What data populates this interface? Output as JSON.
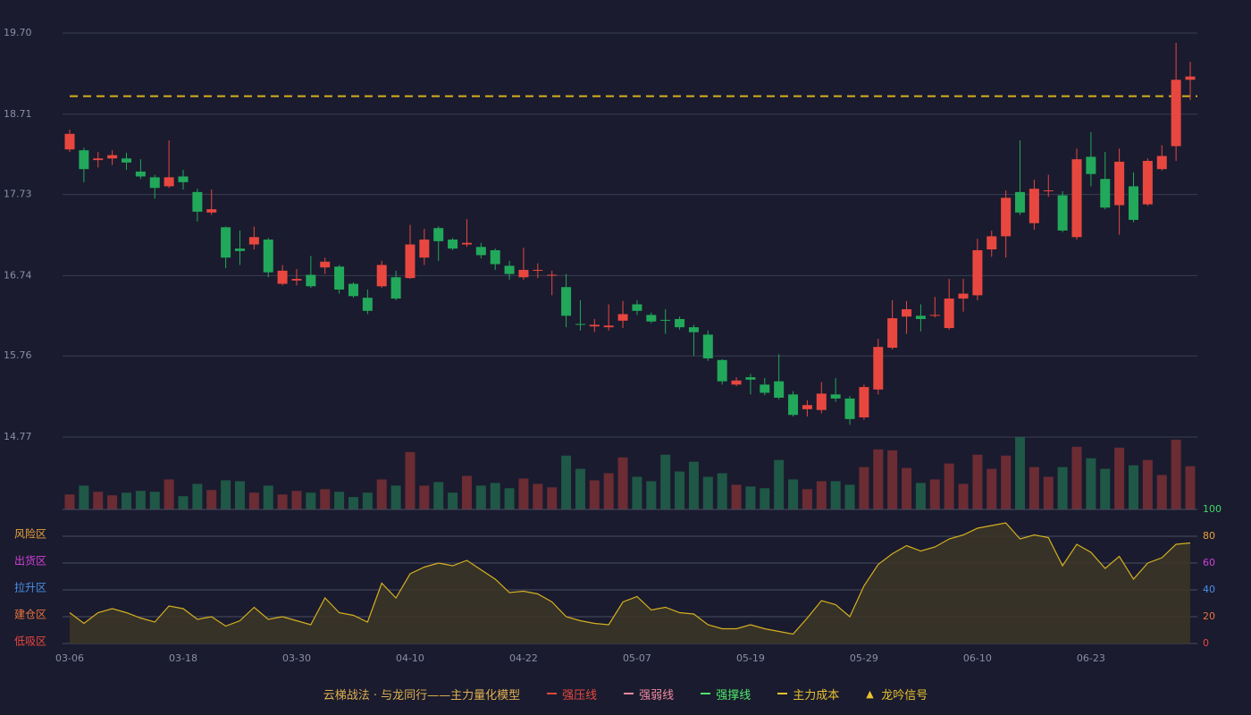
{
  "chart_data": [
    {
      "type": "candlestick",
      "categories": [
        "03-06",
        null,
        null,
        null,
        null,
        null,
        null,
        null,
        "03-18",
        null,
        null,
        null,
        null,
        null,
        null,
        null,
        "03-30",
        null,
        null,
        null,
        null,
        null,
        null,
        null,
        "04-10",
        null,
        null,
        null,
        null,
        null,
        null,
        null,
        "04-22",
        null,
        null,
        null,
        null,
        null,
        null,
        null,
        "05-07",
        null,
        null,
        null,
        null,
        null,
        null,
        null,
        "05-19",
        null,
        null,
        null,
        null,
        null,
        null,
        null,
        "05-29",
        null,
        null,
        null,
        null,
        null,
        null,
        null,
        "06-10",
        null,
        null,
        null,
        null,
        null,
        null,
        null,
        "06-23",
        null,
        null,
        null,
        null,
        null,
        null,
        null
      ],
      "open": [
        18.28,
        18.27,
        18.15,
        18.17,
        18.17,
        18.01,
        17.94,
        17.83,
        17.95,
        17.76,
        17.51,
        17.33,
        17.07,
        17.12,
        17.18,
        16.64,
        16.68,
        16.75,
        16.84,
        16.85,
        16.64,
        16.47,
        16.61,
        16.72,
        16.71,
        16.96,
        17.32,
        17.18,
        17.12,
        17.09,
        17.05,
        16.86,
        16.72,
        16.8,
        16.74,
        16.6,
        16.15,
        16.12,
        16.11,
        16.19,
        16.39,
        16.26,
        16.2,
        16.21,
        16.11,
        16.02,
        15.71,
        15.41,
        15.5,
        15.41,
        15.45,
        15.29,
        15.11,
        15.1,
        15.29,
        15.24,
        15.01,
        15.35,
        15.86,
        16.24,
        16.25,
        16.25,
        16.1,
        16.46,
        16.5,
        17.06,
        17.22,
        17.76,
        17.38,
        17.77,
        17.72,
        17.21,
        18.19,
        17.92,
        17.6,
        17.83,
        17.61,
        18.04,
        18.32,
        19.13
      ],
      "close": [
        18.47,
        18.04,
        18.17,
        18.21,
        18.12,
        17.95,
        17.81,
        17.94,
        17.88,
        17.52,
        17.55,
        16.96,
        17.04,
        17.21,
        16.78,
        16.8,
        16.7,
        16.61,
        16.91,
        16.57,
        16.49,
        16.31,
        16.87,
        16.46,
        17.12,
        17.18,
        17.16,
        17.07,
        17.14,
        16.99,
        16.88,
        16.76,
        16.81,
        16.81,
        16.75,
        16.25,
        16.14,
        16.14,
        16.13,
        16.27,
        16.31,
        16.18,
        16.19,
        16.11,
        16.05,
        15.73,
        15.45,
        15.46,
        15.47,
        15.31,
        15.25,
        15.04,
        15.16,
        15.3,
        15.24,
        14.99,
        15.38,
        15.87,
        16.22,
        16.33,
        16.21,
        16.26,
        16.46,
        16.52,
        17.05,
        17.22,
        17.69,
        17.51,
        17.8,
        17.78,
        17.29,
        18.16,
        17.98,
        17.57,
        18.13,
        17.42,
        18.14,
        18.2,
        19.13,
        19.17
      ],
      "high": [
        18.52,
        18.3,
        18.25,
        18.27,
        18.24,
        18.16,
        17.97,
        18.39,
        18.03,
        17.8,
        17.79,
        17.34,
        17.29,
        17.34,
        17.2,
        16.87,
        16.82,
        16.98,
        16.96,
        16.87,
        16.66,
        16.57,
        16.92,
        16.8,
        17.36,
        17.31,
        17.34,
        17.2,
        17.43,
        17.14,
        17.07,
        16.92,
        17.08,
        16.89,
        16.8,
        16.76,
        16.44,
        16.21,
        16.39,
        16.43,
        16.44,
        16.29,
        16.33,
        16.24,
        16.14,
        16.07,
        15.72,
        15.5,
        15.54,
        15.49,
        15.78,
        15.33,
        15.22,
        15.44,
        15.49,
        15.27,
        15.41,
        15.97,
        16.44,
        16.43,
        16.39,
        16.48,
        16.7,
        16.7,
        17.19,
        17.29,
        17.78,
        18.39,
        17.91,
        17.97,
        17.77,
        18.29,
        18.49,
        18.25,
        18.29,
        18.0,
        18.17,
        18.33,
        19.58,
        19.35
      ],
      "low": [
        18.25,
        17.88,
        18.06,
        18.09,
        18.03,
        17.92,
        17.68,
        17.81,
        17.79,
        17.4,
        17.48,
        16.83,
        16.87,
        17.06,
        16.72,
        16.62,
        16.62,
        16.59,
        16.76,
        16.52,
        16.47,
        16.27,
        16.59,
        16.44,
        16.7,
        16.87,
        16.92,
        17.05,
        17.09,
        16.95,
        16.81,
        16.69,
        16.69,
        16.71,
        16.5,
        16.11,
        16.07,
        16.05,
        16.07,
        16.1,
        16.26,
        16.16,
        16.03,
        16.08,
        15.76,
        15.7,
        15.41,
        15.39,
        15.29,
        15.28,
        15.23,
        15.02,
        15.02,
        15.06,
        15.2,
        14.92,
        14.98,
        15.29,
        15.84,
        16.03,
        16.06,
        16.23,
        16.08,
        16.3,
        16.44,
        16.97,
        16.96,
        17.48,
        17.3,
        17.7,
        17.27,
        17.18,
        17.83,
        17.55,
        17.24,
        17.39,
        17.59,
        18.02,
        18.14,
        18.88
      ],
      "ylim": [
        14.77,
        19.7
      ],
      "yticks": [
        14.77,
        15.76,
        16.74,
        17.73,
        18.71,
        {
          "value": 19.7,
          "label": "19.70"
        }
      ],
      "grid": true,
      "up_color": "#e8473f",
      "down_color": "#22a85a",
      "cost_line": {
        "value": 18.93,
        "color": "#d4b020"
      }
    },
    {
      "type": "bar",
      "values": [
        17,
        27,
        20,
        16,
        19,
        21,
        20,
        34,
        15,
        29,
        22,
        33,
        32,
        19,
        27,
        17,
        21,
        19,
        23,
        20,
        14,
        19,
        34,
        27,
        65,
        27,
        31,
        19,
        38,
        27,
        30,
        24,
        35,
        29,
        25,
        61,
        46,
        33,
        41,
        59,
        37,
        32,
        62,
        43,
        54,
        37,
        41,
        28,
        26,
        24,
        56,
        34,
        23,
        32,
        32,
        28,
        48,
        68,
        67,
        47,
        30,
        34,
        52,
        29,
        62,
        46,
        61,
        82,
        48,
        37,
        48,
        71,
        58,
        46,
        70,
        50,
        56,
        39,
        79,
        49
      ],
      "up_color": "#6b2c33",
      "down_color": "#1f5846"
    },
    {
      "type": "area",
      "values": [
        23,
        15,
        23,
        26,
        23,
        19,
        16,
        28,
        26,
        18,
        20,
        13,
        17,
        27,
        18,
        20,
        17,
        14,
        34,
        23,
        21,
        16,
        45,
        34,
        52,
        57,
        60,
        58,
        62,
        55,
        48,
        38,
        39,
        37,
        31,
        20,
        17,
        15,
        14,
        31,
        35,
        25,
        27,
        23,
        22,
        14,
        11,
        11,
        14,
        11,
        9,
        7,
        19,
        32,
        29,
        20,
        43,
        59,
        67,
        73,
        69,
        72,
        78,
        81,
        86,
        88,
        90,
        78,
        81,
        79,
        58,
        74,
        68,
        56,
        65,
        48,
        60,
        64,
        74,
        75
      ],
      "color": "#d4b020",
      "fill": "#3b3527",
      "ylim": [
        0,
        100
      ],
      "yticks": [
        0,
        20,
        40,
        60,
        80,
        100
      ],
      "ytick_colors": [
        "#e8473f",
        "#e8733f",
        "#4a8fe8",
        "#d040d8",
        "#e8a33a",
        "#3ed66a"
      ],
      "zones": [
        {
          "label": "风险区",
          "value": 80,
          "color": "#e8a33a"
        },
        {
          "label": "出货区",
          "value": 60,
          "color": "#d040d8"
        },
        {
          "label": "拉升区",
          "value": 40,
          "color": "#4a8fe8"
        },
        {
          "label": "建仓区",
          "value": 20,
          "color": "#e8733f"
        },
        {
          "label": "低吸区",
          "value": 0,
          "color": "#e8473f"
        }
      ],
      "grid": true
    }
  ],
  "legend": {
    "title": "云梯战法 · 与龙同行——主力量化模型",
    "title_color": "#e0b050",
    "items": [
      {
        "name": "强压线",
        "color": "#e8473f",
        "marker": "line"
      },
      {
        "name": "强弱线",
        "color": "#f08aa0",
        "marker": "dashed"
      },
      {
        "name": "强撑线",
        "color": "#4ee86a",
        "marker": "line"
      },
      {
        "name": "主力成本",
        "color": "#e8c030",
        "marker": "dashed"
      },
      {
        "name": "龙吟信号",
        "color": "#e8c030",
        "marker": "triangle"
      }
    ]
  }
}
